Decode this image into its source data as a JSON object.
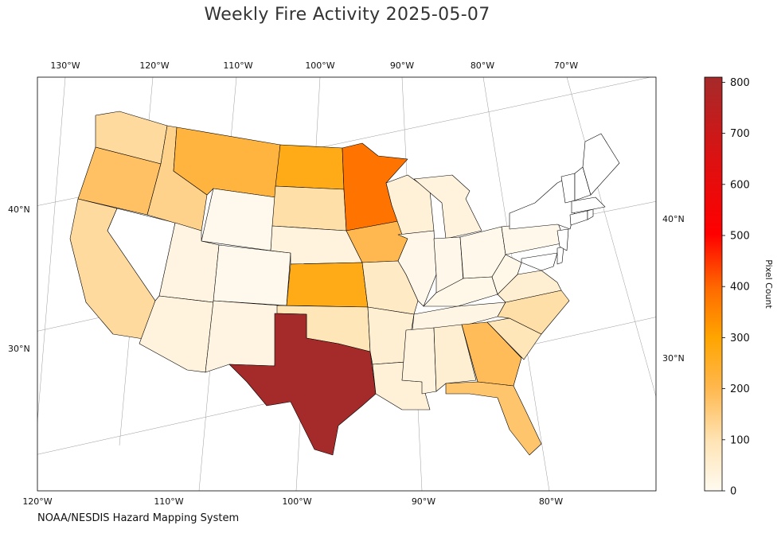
{
  "title": "Weekly Fire Activity 2025-05-07",
  "credit": "NOAA/NESDIS Hazard Mapping System",
  "colorbar": {
    "label": "Pixel Count",
    "ticks": [
      "0",
      "100",
      "200",
      "300",
      "400",
      "500",
      "600",
      "700",
      "800"
    ],
    "range": [
      0,
      810
    ],
    "colors": [
      "#fffaf0",
      "#ffe4b5",
      "#ffb74d",
      "#ffa500",
      "#ff6a00",
      "#ff0000",
      "#dd1111",
      "#a52a2a"
    ]
  },
  "axes": {
    "top_lon": [
      "130°W",
      "120°W",
      "110°W",
      "100°W",
      "90°W",
      "80°W",
      "70°W"
    ],
    "bottom_lon": [
      "120°W",
      "110°W",
      "100°W",
      "90°W",
      "80°W"
    ],
    "left_lat": [
      "40°N",
      "30°N"
    ],
    "right_lat": [
      "40°N",
      "30°N"
    ]
  },
  "map_data": {
    "type": "choropleth",
    "metric": "Pixel Count",
    "states": [
      {
        "state": "Texas",
        "value": 810
      },
      {
        "state": "Minnesota",
        "value": 380
      },
      {
        "state": "Kansas",
        "value": 270
      },
      {
        "state": "North Dakota",
        "value": 270
      },
      {
        "state": "Montana",
        "value": 220
      },
      {
        "state": "Iowa",
        "value": 200
      },
      {
        "state": "Georgia",
        "value": 190
      },
      {
        "state": "Oregon",
        "value": 180
      },
      {
        "state": "Florida",
        "value": 170
      },
      {
        "state": "Idaho",
        "value": 140
      },
      {
        "state": "Washington",
        "value": 120
      },
      {
        "state": "California",
        "value": 120
      },
      {
        "state": "South Dakota",
        "value": 110
      },
      {
        "state": "North Carolina",
        "value": 110
      },
      {
        "state": "South Carolina",
        "value": 90
      },
      {
        "state": "Oklahoma",
        "value": 90
      },
      {
        "state": "Missouri",
        "value": 70
      },
      {
        "state": "Virginia",
        "value": 50
      },
      {
        "state": "Arkansas",
        "value": 50
      },
      {
        "state": "Louisiana",
        "value": 40
      },
      {
        "state": "Alabama",
        "value": 50
      },
      {
        "state": "Mississippi",
        "value": 30
      },
      {
        "state": "Wisconsin",
        "value": 40
      },
      {
        "state": "Michigan",
        "value": 30
      },
      {
        "state": "Nebraska",
        "value": 30
      },
      {
        "state": "Arizona",
        "value": 30
      },
      {
        "state": "New Mexico",
        "value": 25
      },
      {
        "state": "Utah",
        "value": 25
      },
      {
        "state": "Tennessee",
        "value": 20
      },
      {
        "state": "Kentucky",
        "value": 15
      },
      {
        "state": "West Virginia",
        "value": 15
      },
      {
        "state": "Illinois",
        "value": 10
      },
      {
        "state": "Indiana",
        "value": 10
      },
      {
        "state": "Ohio",
        "value": 8
      },
      {
        "state": "Pennsylvania",
        "value": 8
      },
      {
        "state": "Wyoming",
        "value": 5
      },
      {
        "state": "Colorado",
        "value": 5
      },
      {
        "state": "Nevada",
        "value": 0
      },
      {
        "state": "New York",
        "value": 0
      },
      {
        "state": "Maine",
        "value": 0
      },
      {
        "state": "Vermont",
        "value": 0
      },
      {
        "state": "New Hampshire",
        "value": 0
      },
      {
        "state": "Massachusetts",
        "value": 0
      },
      {
        "state": "Connecticut",
        "value": 0
      },
      {
        "state": "Rhode Island",
        "value": 0
      },
      {
        "state": "New Jersey",
        "value": 0
      },
      {
        "state": "Delaware",
        "value": 0
      },
      {
        "state": "Maryland",
        "value": 0
      }
    ]
  }
}
